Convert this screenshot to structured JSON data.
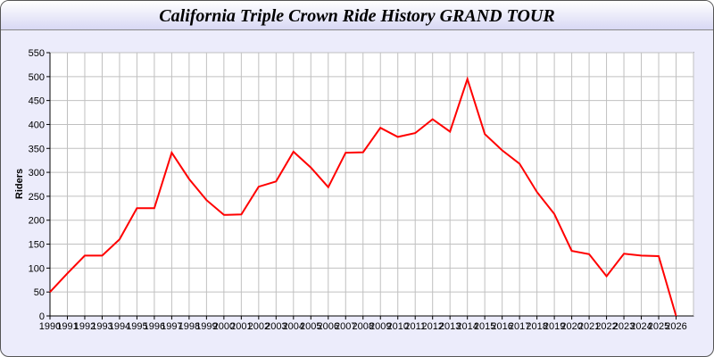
{
  "chart_data": {
    "type": "line",
    "title": "California Triple Crown Ride History GRAND TOUR",
    "xlabel": "",
    "ylabel": "Riders",
    "x": [
      1990,
      1991,
      1992,
      1993,
      1994,
      1995,
      1996,
      1997,
      1998,
      1999,
      2000,
      2001,
      2002,
      2003,
      2004,
      2005,
      2006,
      2007,
      2008,
      2009,
      2010,
      2011,
      2012,
      2013,
      2014,
      2015,
      2016,
      2017,
      2018,
      2019,
      2020,
      2021,
      2022,
      2023,
      2024,
      2025,
      2026
    ],
    "series": [
      {
        "values": [
          50,
          89,
          126,
          126,
          160,
          225,
          225,
          341,
          286,
          242,
          211,
          212,
          270,
          281,
          343,
          310,
          269,
          341,
          342,
          393,
          374,
          382,
          411,
          385,
          495,
          380,
          346,
          318,
          259,
          213,
          136,
          129,
          83,
          130,
          126,
          125,
          0
        ],
        "color": "#ff0000"
      }
    ],
    "xlim": [
      1990,
      2027
    ],
    "ylim": [
      0,
      550
    ],
    "yticks": [
      0,
      50,
      100,
      150,
      200,
      250,
      300,
      350,
      400,
      450,
      500,
      550
    ],
    "grid": true,
    "background": "#ececfb"
  }
}
